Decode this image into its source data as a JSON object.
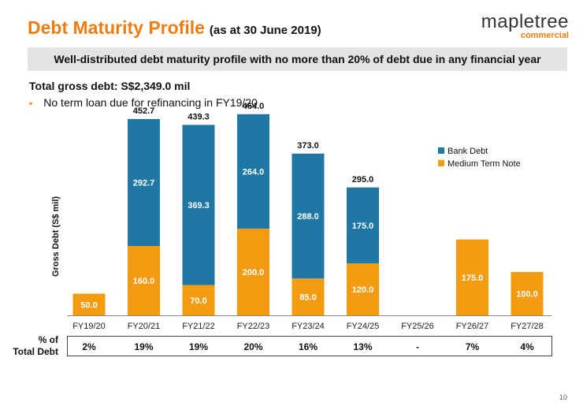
{
  "header": {
    "title": "Debt Maturity Profile",
    "subtitle": "(as at 30 June 2019)",
    "logo_name": "mapletree",
    "logo_tag": "commercial"
  },
  "banner": "Well-distributed debt maturity profile with no more than 20% of debt due in any financial year",
  "total_gross_debt": "Total gross debt: S$2,349.0 mil",
  "bullets": [
    "No term loan due for refinancing in FY19/20"
  ],
  "colors": {
    "bank": "#1f77a6",
    "mtn": "#f39c12",
    "accent": "#ee7d11"
  },
  "pct_label": {
    "line1": "% of",
    "line2": "Total Debt"
  },
  "pct_values": [
    "2%",
    "19%",
    "19%",
    "20%",
    "16%",
    "13%",
    "-",
    "7%",
    "4%"
  ],
  "page_number": "10",
  "chart_data": {
    "type": "bar",
    "stacked": true,
    "title": "",
    "xlabel": "",
    "ylabel": "Gross Debt (S$ mil)",
    "ylim": [
      0,
      500
    ],
    "legend_position": "top-right",
    "categories": [
      "FY19/20",
      "FY20/21",
      "FY21/22",
      "FY22/23",
      "FY23/24",
      "FY24/25",
      "FY25/26",
      "FY26/27",
      "FY27/28"
    ],
    "series": [
      {
        "name": "Medium Term Note",
        "values": [
          50.0,
          160.0,
          70.0,
          200.0,
          85.0,
          120.0,
          0,
          175.0,
          100.0
        ],
        "labels": [
          "50.0",
          "160.0",
          "70.0",
          "200.0",
          "85.0",
          "120.0",
          "",
          "175.0",
          "100.0"
        ]
      },
      {
        "name": "Bank Debt",
        "values": [
          0,
          292.7,
          369.3,
          264.0,
          288.0,
          175.0,
          0,
          0,
          0
        ],
        "labels": [
          "",
          "292.7",
          "369.3",
          "264.0",
          "288.0",
          "175.0",
          "",
          "",
          ""
        ]
      }
    ],
    "totals": [
      "",
      "452.7",
      "439.3",
      "464.0",
      "373.0",
      "295.0",
      "",
      "",
      ""
    ],
    "legend": [
      "Bank Debt",
      "Medium Term Note"
    ]
  }
}
